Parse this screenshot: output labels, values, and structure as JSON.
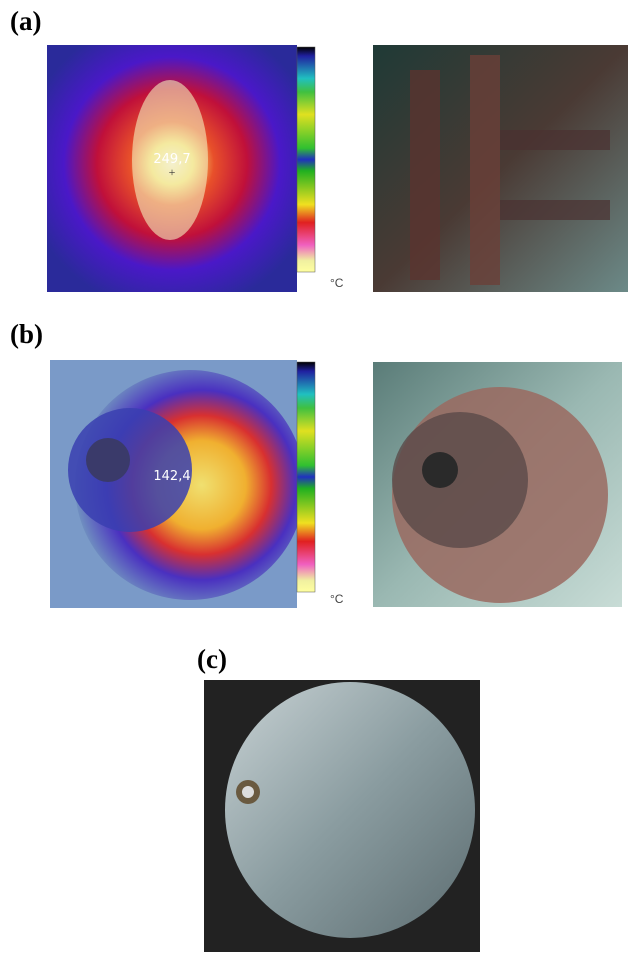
{
  "panels": [
    {
      "label": "(a)",
      "reading": "249,7",
      "unit": "°C"
    },
    {
      "label": "(b)",
      "reading": "142,4",
      "unit": "°C"
    },
    {
      "label": "(c)"
    }
  ]
}
